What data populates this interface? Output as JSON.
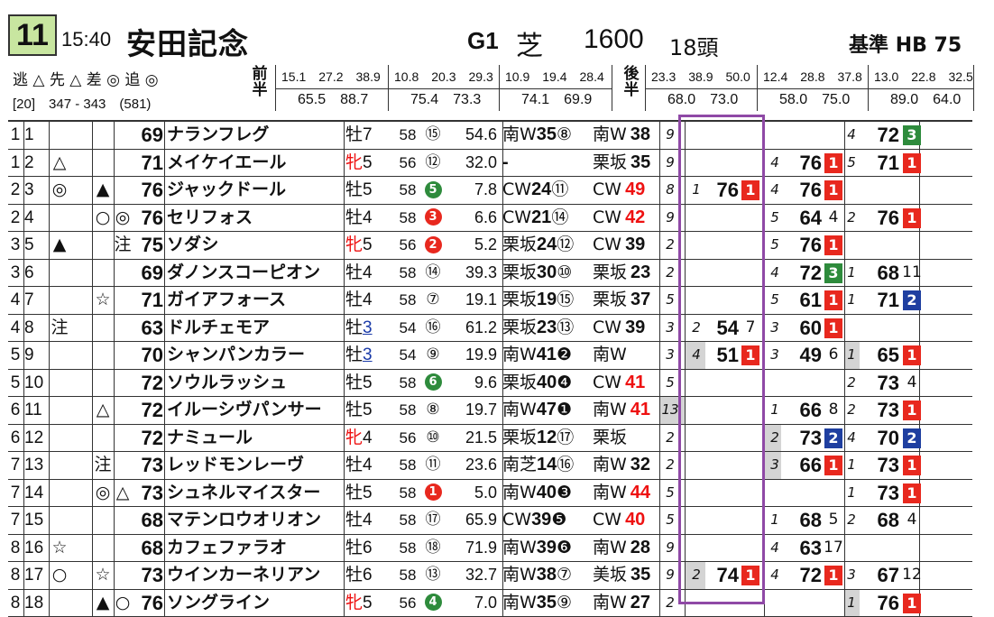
{
  "header": {
    "race_number": "11",
    "time": "15:40",
    "race_name": "安田記念",
    "grade": "G1",
    "surface": "芝",
    "distance": "1600",
    "runners": "18頭",
    "standard_label": "基準",
    "standard_value": "HB 75",
    "legend": "逃 △ 先 △ 差 ◎ 追 ◎",
    "pace": "[20]　347 - 343　(581)",
    "first_half_label": "前半",
    "second_half_label": "後半",
    "laps_first": [
      {
        "top": "15.1　27.2　38.9",
        "bot": "65.5　88.7"
      },
      {
        "top": "10.8　20.3　29.3",
        "bot": "75.4　73.3"
      },
      {
        "top": "10.9　19.4　28.4",
        "bot": "74.1　69.9"
      }
    ],
    "laps_second": [
      {
        "top": "23.3　38.9　50.0",
        "bot": "68.0　73.0"
      },
      {
        "top": "12.4　28.8　37.8",
        "bot": "58.0　75.0"
      },
      {
        "top": "13.0　22.8　32.5",
        "bot": "89.0　64.0"
      }
    ]
  },
  "colors": {
    "red_badge": "#e8281e",
    "green_badge": "#2e8b3c",
    "blue_badge": "#1f3fa0",
    "highlight_border": "#8f49a6",
    "race_no_bg": "#c8e6a0",
    "waku_black_circle": "#222222",
    "waku_red_circle": "#e8281e",
    "waku_green_circle": "#2e8b3c"
  },
  "rows": [
    {
      "waku": "1",
      "umaban": "1",
      "m1": "",
      "m2": "",
      "m3": "",
      "idx": "69",
      "name": "ナランフレグ",
      "sex": "牡",
      "age": "7",
      "sex_red": false,
      "kg": "58",
      "wn": "⑮",
      "wn_style": "plain",
      "odds": "54.6",
      "t1": "南W",
      "t1v": "35",
      "t1c": "⑧",
      "t2": "南W",
      "t2v": "38",
      "t2red": false,
      "cnt": "9",
      "cnt_gray": false,
      "p1s": "",
      "p1v": "",
      "p1r": "",
      "p1c": "",
      "p2s": "",
      "p2v": "",
      "p2r": "",
      "p2c": "",
      "p3s": "4",
      "p3v": "72",
      "p3r": "3",
      "p3c": "green",
      "p3s_gray": false,
      "p2s_gray": false,
      "p1s_gray": false
    },
    {
      "waku": "1",
      "umaban": "2",
      "m1": "△",
      "m2": "",
      "m3": "",
      "idx": "71",
      "name": "メイケイエール",
      "sex": "牝",
      "age": "5",
      "sex_red": true,
      "kg": "56",
      "wn": "⑫",
      "wn_style": "plain",
      "odds": "32.0",
      "t1": "",
      "t1v": "-",
      "t1c": "",
      "t2": "栗坂",
      "t2v": "35",
      "t2red": false,
      "cnt": "9",
      "cnt_gray": false,
      "p1s": "",
      "p1v": "",
      "p1r": "",
      "p1c": "",
      "p2s": "4",
      "p2v": "76",
      "p2r": "1",
      "p2c": "red",
      "p3s": "5",
      "p3v": "71",
      "p3r": "1",
      "p3c": "red",
      "p3s_gray": false,
      "p2s_gray": false,
      "p1s_gray": false
    },
    {
      "waku": "2",
      "umaban": "3",
      "m1": "◎",
      "m2": "▲",
      "m3": "",
      "idx": "76",
      "name": "ジャックドール",
      "sex": "牡",
      "age": "5",
      "sex_red": false,
      "kg": "58",
      "wn": "5",
      "wn_style": "green",
      "odds": "7.8",
      "t1": "CW",
      "t1v": "24",
      "t1c": "⑪",
      "t2": "CW",
      "t2v": "49",
      "t2red": true,
      "cnt": "8",
      "cnt_gray": false,
      "p1s": "1",
      "p1v": "76",
      "p1r": "1",
      "p1c": "red",
      "p2s": "4",
      "p2v": "76",
      "p2r": "1",
      "p2c": "red",
      "p3s": "",
      "p3v": "",
      "p3r": "",
      "p3c": "",
      "p3s_gray": false,
      "p2s_gray": false,
      "p1s_gray": false
    },
    {
      "waku": "2",
      "umaban": "4",
      "m1": "",
      "m2": "○",
      "m3": "◎",
      "idx": "76",
      "name": "セリフォス",
      "sex": "牡",
      "age": "4",
      "sex_red": false,
      "kg": "58",
      "wn": "3",
      "wn_style": "red",
      "odds": "6.6",
      "t1": "CW",
      "t1v": "21",
      "t1c": "⑭",
      "t2": "CW",
      "t2v": "42",
      "t2red": true,
      "cnt": "9",
      "cnt_gray": false,
      "p1s": "",
      "p1v": "",
      "p1r": "",
      "p1c": "",
      "p2s": "5",
      "p2v": "64",
      "p2r": "4",
      "p2c": "",
      "p3s": "2",
      "p3v": "76",
      "p3r": "1",
      "p3c": "red",
      "p3s_gray": false,
      "p2s_gray": false,
      "p1s_gray": false
    },
    {
      "waku": "3",
      "umaban": "5",
      "m1": "▲",
      "m2": "",
      "m3": "注",
      "idx": "75",
      "name": "ソダシ",
      "sex": "牝",
      "age": "5",
      "sex_red": true,
      "kg": "56",
      "wn": "2",
      "wn_style": "red",
      "odds": "5.2",
      "t1": "栗坂",
      "t1v": "24",
      "t1c": "⑫",
      "t2": "CW",
      "t2v": "39",
      "t2red": false,
      "cnt": "2",
      "cnt_gray": false,
      "p1s": "",
      "p1v": "",
      "p1r": "",
      "p1c": "",
      "p2s": "5",
      "p2v": "76",
      "p2r": "1",
      "p2c": "red",
      "p3s": "",
      "p3v": "",
      "p3r": "",
      "p3c": "",
      "p3s_gray": false,
      "p2s_gray": false,
      "p1s_gray": false
    },
    {
      "waku": "3",
      "umaban": "6",
      "m1": "",
      "m2": "",
      "m3": "",
      "idx": "69",
      "name": "ダノンスコーピオン",
      "sex": "牡",
      "age": "4",
      "sex_red": false,
      "kg": "58",
      "wn": "⑭",
      "wn_style": "plain",
      "odds": "39.3",
      "t1": "栗坂",
      "t1v": "30",
      "t1c": "⑩",
      "t2": "栗坂",
      "t2v": "23",
      "t2red": false,
      "cnt": "2",
      "cnt_gray": false,
      "p1s": "",
      "p1v": "",
      "p1r": "",
      "p1c": "",
      "p2s": "4",
      "p2v": "72",
      "p2r": "3",
      "p2c": "green",
      "p3s": "1",
      "p3v": "68",
      "p3r": "11",
      "p3c": "",
      "p3s_gray": false,
      "p2s_gray": false,
      "p1s_gray": false
    },
    {
      "waku": "4",
      "umaban": "7",
      "m1": "",
      "m2": "☆",
      "m3": "",
      "idx": "71",
      "name": "ガイアフォース",
      "sex": "牡",
      "age": "4",
      "sex_red": false,
      "kg": "58",
      "wn": "⑦",
      "wn_style": "plain",
      "odds": "19.1",
      "t1": "栗坂",
      "t1v": "19",
      "t1c": "⑮",
      "t2": "栗坂",
      "t2v": "37",
      "t2red": false,
      "cnt": "5",
      "cnt_gray": false,
      "p1s": "",
      "p1v": "",
      "p1r": "",
      "p1c": "",
      "p2s": "5",
      "p2v": "61",
      "p2r": "1",
      "p2c": "red",
      "p3s": "1",
      "p3v": "71",
      "p3r": "2",
      "p3c": "blue",
      "p3s_gray": false,
      "p2s_gray": false,
      "p1s_gray": false
    },
    {
      "waku": "4",
      "umaban": "8",
      "m1": "注",
      "m2": "",
      "m3": "",
      "idx": "63",
      "name": "ドルチェモア",
      "sex": "牡",
      "age": "3",
      "sex_red": false,
      "age_blue": true,
      "kg": "54",
      "wn": "⑯",
      "wn_style": "plain",
      "odds": "61.2",
      "t1": "栗坂",
      "t1v": "23",
      "t1c": "⑬",
      "t2": "CW",
      "t2v": "39",
      "t2red": false,
      "cnt": "3",
      "cnt_gray": false,
      "p1s": "2",
      "p1v": "54",
      "p1r": "7",
      "p1c": "",
      "p2s": "3",
      "p2v": "60",
      "p2r": "1",
      "p2c": "red",
      "p3s": "",
      "p3v": "",
      "p3r": "",
      "p3c": "",
      "p3s_gray": false,
      "p2s_gray": false,
      "p1s_gray": false
    },
    {
      "waku": "5",
      "umaban": "9",
      "m1": "",
      "m2": "",
      "m3": "",
      "idx": "70",
      "name": "シャンパンカラー",
      "sex": "牡",
      "age": "3",
      "sex_red": false,
      "age_blue": true,
      "kg": "54",
      "wn": "⑨",
      "wn_style": "plain",
      "odds": "19.9",
      "t1": "南W",
      "t1v": "41",
      "t1c": "❷",
      "t2": "南W",
      "t2v": "",
      "t2red": false,
      "cnt": "3",
      "cnt_gray": false,
      "p1s": "4",
      "p1v": "51",
      "p1r": "1",
      "p1c": "red",
      "p2s": "3",
      "p2v": "49",
      "p2r": "6",
      "p2c": "",
      "p3s": "1",
      "p3v": "65",
      "p3r": "1",
      "p3c": "red",
      "p3s_gray": true,
      "p2s_gray": false,
      "p1s_gray": true
    },
    {
      "waku": "5",
      "umaban": "10",
      "m1": "",
      "m2": "",
      "m3": "",
      "idx": "72",
      "name": "ソウルラッシュ",
      "sex": "牡",
      "age": "5",
      "sex_red": false,
      "kg": "58",
      "wn": "6",
      "wn_style": "green",
      "odds": "9.6",
      "t1": "栗坂",
      "t1v": "40",
      "t1c": "❹",
      "t2": "CW",
      "t2v": "41",
      "t2red": true,
      "cnt": "5",
      "cnt_gray": false,
      "p1s": "",
      "p1v": "",
      "p1r": "",
      "p1c": "",
      "p2s": "",
      "p2v": "",
      "p2r": "",
      "p2c": "",
      "p3s": "2",
      "p3v": "73",
      "p3r": "4",
      "p3c": "",
      "p3s_gray": false,
      "p2s_gray": false,
      "p1s_gray": false
    },
    {
      "waku": "6",
      "umaban": "11",
      "m1": "",
      "m2": "△",
      "m3": "",
      "idx": "72",
      "name": "イルーシヴパンサー",
      "sex": "牡",
      "age": "5",
      "sex_red": false,
      "kg": "58",
      "wn": "⑧",
      "wn_style": "plain",
      "odds": "19.7",
      "t1": "南W",
      "t1v": "47",
      "t1c": "❶",
      "t2": "南W",
      "t2v": "41",
      "t2red": true,
      "cnt": "13",
      "cnt_gray": true,
      "p1s": "",
      "p1v": "",
      "p1r": "",
      "p1c": "",
      "p2s": "1",
      "p2v": "66",
      "p2r": "8",
      "p2c": "",
      "p3s": "2",
      "p3v": "73",
      "p3r": "1",
      "p3c": "red",
      "p3s_gray": false,
      "p2s_gray": false,
      "p1s_gray": false
    },
    {
      "waku": "6",
      "umaban": "12",
      "m1": "",
      "m2": "",
      "m3": "",
      "idx": "72",
      "name": "ナミュール",
      "sex": "牝",
      "age": "4",
      "sex_red": true,
      "kg": "56",
      "wn": "⑩",
      "wn_style": "plain",
      "odds": "21.5",
      "t1": "栗坂",
      "t1v": "12",
      "t1c": "⑰",
      "t2": "栗坂",
      "t2v": "",
      "t2red": false,
      "cnt": "2",
      "cnt_gray": false,
      "p1s": "",
      "p1v": "",
      "p1r": "",
      "p1c": "",
      "p2s": "2",
      "p2v": "73",
      "p2r": "2",
      "p2c": "blue",
      "p3s": "4",
      "p3v": "70",
      "p3r": "2",
      "p3c": "blue",
      "p3s_gray": false,
      "p2s_gray": true,
      "p1s_gray": false
    },
    {
      "waku": "7",
      "umaban": "13",
      "m1": "",
      "m2": "注",
      "m3": "",
      "idx": "73",
      "name": "レッドモンレーヴ",
      "sex": "牡",
      "age": "4",
      "sex_red": false,
      "kg": "58",
      "wn": "⑪",
      "wn_style": "plain",
      "odds": "23.6",
      "t1": "南芝",
      "t1v": "14",
      "t1c": "⑯",
      "t2": "南W",
      "t2v": "32",
      "t2red": false,
      "cnt": "2",
      "cnt_gray": false,
      "p1s": "",
      "p1v": "",
      "p1r": "",
      "p1c": "",
      "p2s": "3",
      "p2v": "66",
      "p2r": "1",
      "p2c": "red",
      "p3s": "1",
      "p3v": "73",
      "p3r": "1",
      "p3c": "red",
      "p3s_gray": false,
      "p2s_gray": true,
      "p1s_gray": false
    },
    {
      "waku": "7",
      "umaban": "14",
      "m1": "",
      "m2": "◎",
      "m3": "△",
      "idx": "73",
      "name": "シュネルマイスター",
      "sex": "牡",
      "age": "5",
      "sex_red": false,
      "kg": "58",
      "wn": "1",
      "wn_style": "red",
      "odds": "5.0",
      "t1": "南W",
      "t1v": "40",
      "t1c": "❸",
      "t2": "南W",
      "t2v": "44",
      "t2red": true,
      "cnt": "5",
      "cnt_gray": false,
      "p1s": "",
      "p1v": "",
      "p1r": "",
      "p1c": "",
      "p2s": "",
      "p2v": "",
      "p2r": "",
      "p2c": "",
      "p3s": "1",
      "p3v": "73",
      "p3r": "1",
      "p3c": "red",
      "p3s_gray": false,
      "p2s_gray": false,
      "p1s_gray": false
    },
    {
      "waku": "7",
      "umaban": "15",
      "m1": "",
      "m2": "",
      "m3": "",
      "idx": "68",
      "name": "マテンロウオリオン",
      "sex": "牡",
      "age": "4",
      "sex_red": false,
      "kg": "58",
      "wn": "⑰",
      "wn_style": "plain",
      "odds": "65.9",
      "t1": "CW",
      "t1v": "39",
      "t1c": "❺",
      "t2": "CW",
      "t2v": "40",
      "t2red": true,
      "cnt": "5",
      "cnt_gray": false,
      "p1s": "",
      "p1v": "",
      "p1r": "",
      "p1c": "",
      "p2s": "1",
      "p2v": "68",
      "p2r": "5",
      "p2c": "",
      "p3s": "2",
      "p3v": "68",
      "p3r": "4",
      "p3c": "",
      "p3s_gray": false,
      "p2s_gray": false,
      "p1s_gray": false
    },
    {
      "waku": "8",
      "umaban": "16",
      "m1": "☆",
      "m2": "",
      "m3": "",
      "idx": "68",
      "name": "カフェファラオ",
      "sex": "牡",
      "age": "6",
      "sex_red": false,
      "kg": "58",
      "wn": "⑱",
      "wn_style": "plain",
      "odds": "71.9",
      "t1": "南W",
      "t1v": "39",
      "t1c": "❻",
      "t2": "南W",
      "t2v": "28",
      "t2red": false,
      "cnt": "9",
      "cnt_gray": false,
      "p1s": "",
      "p1v": "",
      "p1r": "",
      "p1c": "",
      "p2s": "4",
      "p2v": "63",
      "p2r": "17",
      "p2c": "",
      "p3s": "",
      "p3v": "",
      "p3r": "",
      "p3c": "",
      "p3s_gray": false,
      "p2s_gray": false,
      "p1s_gray": false
    },
    {
      "waku": "8",
      "umaban": "17",
      "m1": "○",
      "m2": "☆",
      "m3": "",
      "idx": "73",
      "name": "ウインカーネリアン",
      "sex": "牡",
      "age": "6",
      "sex_red": false,
      "kg": "58",
      "wn": "⑬",
      "wn_style": "plain",
      "odds": "32.7",
      "t1": "南W",
      "t1v": "38",
      "t1c": "⑦",
      "t2": "美坂",
      "t2v": "35",
      "t2red": false,
      "cnt": "9",
      "cnt_gray": false,
      "p1s": "2",
      "p1v": "74",
      "p1r": "1",
      "p1c": "red",
      "p2s": "4",
      "p2v": "72",
      "p2r": "1",
      "p2c": "red",
      "p3s": "3",
      "p3v": "67",
      "p3r": "12",
      "p3c": "",
      "p3s_gray": false,
      "p2s_gray": false,
      "p1s_gray": true
    },
    {
      "waku": "8",
      "umaban": "18",
      "m1": "",
      "m2": "▲",
      "m3": "○",
      "idx": "76",
      "name": "ソングライン",
      "sex": "牝",
      "age": "5",
      "sex_red": true,
      "kg": "56",
      "wn": "4",
      "wn_style": "green",
      "odds": "7.0",
      "t1": "南W",
      "t1v": "35",
      "t1c": "⑨",
      "t2": "南W",
      "t2v": "27",
      "t2red": false,
      "cnt": "2",
      "cnt_gray": false,
      "p1s": "",
      "p1v": "",
      "p1r": "",
      "p1c": "",
      "p2s": "",
      "p2v": "",
      "p2r": "",
      "p2c": "",
      "p3s": "1",
      "p3v": "76",
      "p3r": "1",
      "p3c": "red",
      "p3s_gray": true,
      "p2s_gray": false,
      "p1s_gray": false
    }
  ]
}
